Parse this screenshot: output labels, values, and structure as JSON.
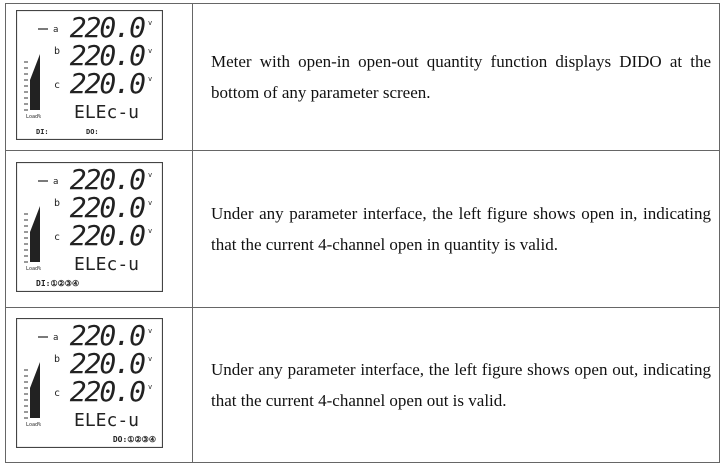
{
  "rows": [
    {
      "display": {
        "top_marker": "a",
        "phases": [
          "b",
          "c"
        ],
        "readings": [
          "220.0",
          "220.0",
          "220.0"
        ],
        "units": [
          "v",
          "v",
          "v"
        ],
        "load_label": "Load%",
        "function": "ELEc-u",
        "status": [
          "DI:",
          "DO:"
        ]
      },
      "text": "Meter with open-in open-out quantity function displays DIDO at the bottom of any parameter screen."
    },
    {
      "display": {
        "top_marker": "a",
        "phases": [
          "b",
          "c"
        ],
        "readings": [
          "220.0",
          "220.0",
          "220.0"
        ],
        "units": [
          "v",
          "v",
          "v"
        ],
        "load_label": "Load%",
        "function": "ELEc-u",
        "status": [
          "DI:①②③④"
        ]
      },
      "text": "Under any parameter interface, the left figure shows open in, indicating that the current 4-channel open in quantity is valid."
    },
    {
      "display": {
        "top_marker": "a",
        "phases": [
          "b",
          "c"
        ],
        "readings": [
          "220.0",
          "220.0",
          "220.0"
        ],
        "units": [
          "v",
          "v",
          "v"
        ],
        "load_label": "Load%",
        "function": "ELEc-u",
        "status": [
          "DO:①②③④"
        ]
      },
      "text": "Under any parameter interface, the left figure shows open out, indicating that the current 4-channel open out is valid."
    }
  ]
}
